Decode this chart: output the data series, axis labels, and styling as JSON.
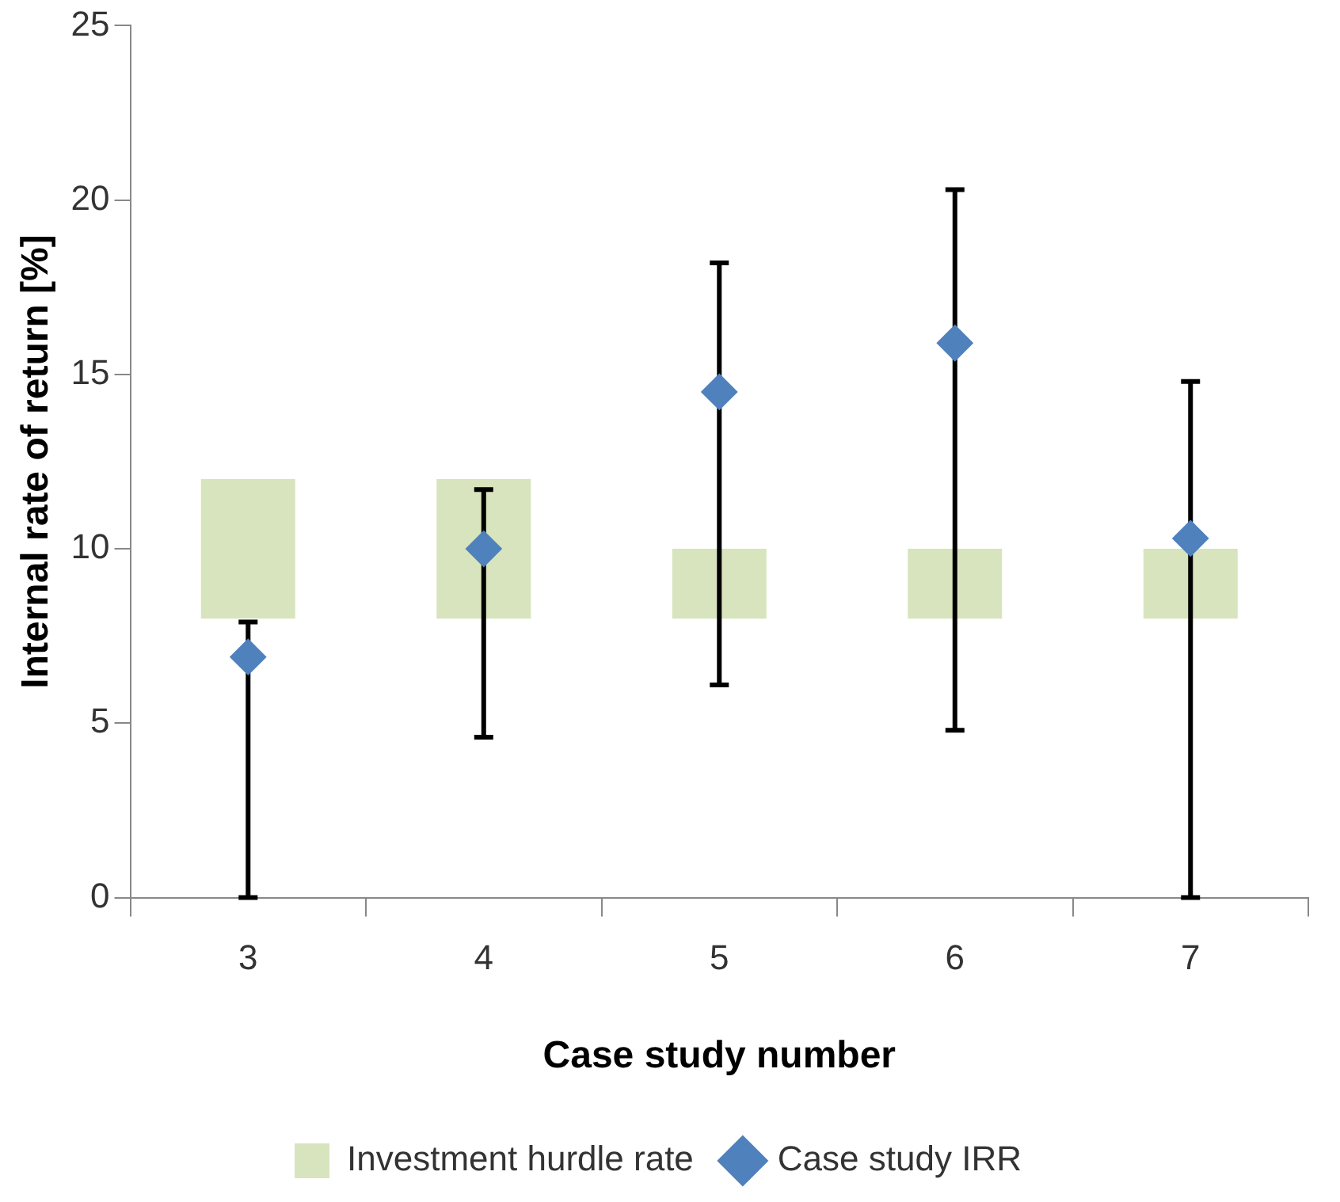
{
  "chart_data": {
    "type": "bar",
    "xlabel": "Case study number",
    "ylabel": "Internal rate of return [%]",
    "categories": [
      "3",
      "4",
      "5",
      "6",
      "7"
    ],
    "ylim": [
      0,
      25
    ],
    "yticks": [
      0,
      5,
      10,
      15,
      20,
      25
    ],
    "grid": false,
    "legend": "bottom",
    "series": [
      {
        "name": "Investment hurdle rate",
        "color": "#d7e4bd",
        "base": [
          8,
          8,
          8,
          8,
          8
        ],
        "values": [
          4,
          4,
          2,
          2,
          2
        ]
      },
      {
        "name": "Case study IRR",
        "type": "scatter",
        "color": "#4f81bd",
        "marker": "diamond",
        "x": [
          "3",
          "4",
          "5",
          "6",
          "7"
        ],
        "values": [
          6.9,
          10.0,
          14.5,
          15.9,
          10.3
        ],
        "errors": [
          [
            0,
            7.9
          ],
          [
            4.6,
            11.7
          ],
          [
            6.1,
            18.2
          ],
          [
            4.8,
            20.3
          ],
          [
            0,
            14.8
          ]
        ]
      }
    ]
  }
}
